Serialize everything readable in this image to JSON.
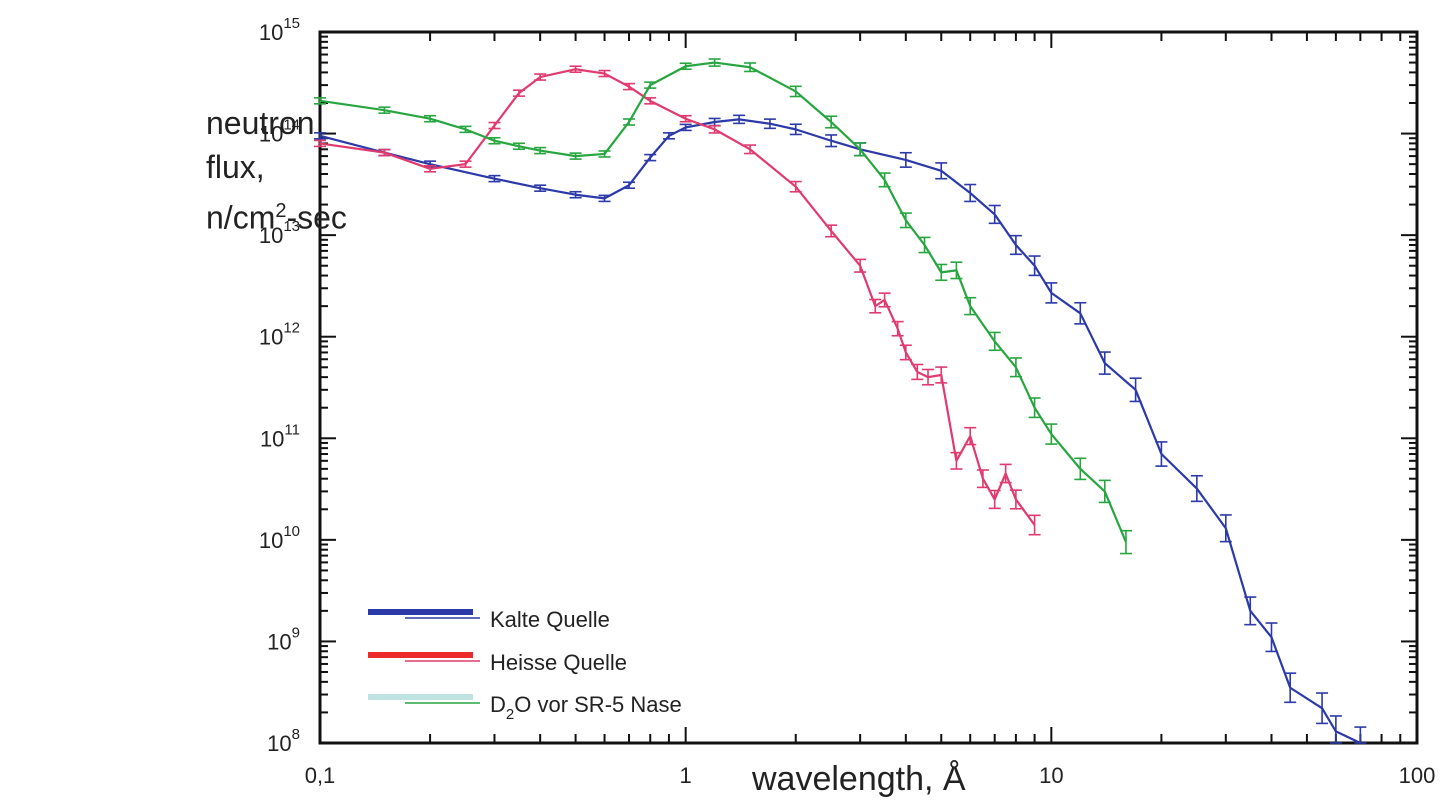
{
  "chart_data": {
    "type": "line",
    "title": "",
    "ylabel_lines": [
      "neutron",
      "flux,",
      "n/cm",
      "2",
      "-sec"
    ],
    "xlabel": "wavelength, Å",
    "xscale": "log",
    "yscale": "log",
    "xlim": [
      0.1,
      100
    ],
    "ylim": [
      100000000.0,
      1000000000000000.0
    ],
    "x_ticks": [
      {
        "value": 0.1,
        "label": "0,1"
      },
      {
        "value": 1,
        "label": "1"
      },
      {
        "value": 10,
        "label": "10"
      },
      {
        "value": 100,
        "label": "100"
      }
    ],
    "y_ticks": [
      {
        "value": 100000000.0,
        "base": "10",
        "exp": "8"
      },
      {
        "value": 1000000000.0,
        "base": "10",
        "exp": "9"
      },
      {
        "value": 10000000000.0,
        "base": "10",
        "exp": "10"
      },
      {
        "value": 100000000000.0,
        "base": "10",
        "exp": "11"
      },
      {
        "value": 1000000000000.0,
        "base": "10",
        "exp": "12"
      },
      {
        "value": 10000000000000.0,
        "base": "10",
        "exp": "13"
      },
      {
        "value": 100000000000000.0,
        "base": "10",
        "exp": "14"
      },
      {
        "value": 1000000000000000.0,
        "base": "10",
        "exp": "15"
      }
    ],
    "legend_position": "bottom-left",
    "series": [
      {
        "name": "Kalte Quelle",
        "color": "#2b3aa8",
        "x": [
          0.1,
          0.15,
          0.2,
          0.3,
          0.4,
          0.5,
          0.6,
          0.7,
          0.8,
          0.9,
          1.0,
          1.2,
          1.4,
          1.7,
          2.0,
          2.5,
          3.0,
          4.0,
          5.0,
          6.0,
          7.0,
          8.0,
          9.0,
          10.0,
          12.0,
          14.0,
          17.0,
          20.0,
          25.0,
          30.0,
          35.0,
          40.0,
          45.0,
          55.0,
          60.0,
          70.0
        ],
        "y": [
          95000000000000.0,
          65000000000000.0,
          50000000000000.0,
          36000000000000.0,
          29000000000000.0,
          25000000000000.0,
          23000000000000.0,
          31000000000000.0,
          58000000000000.0,
          95000000000000.0,
          115000000000000.0,
          130000000000000.0,
          138000000000000.0,
          125000000000000.0,
          110000000000000.0,
          85000000000000.0,
          70000000000000.0,
          55000000000000.0,
          43000000000000.0,
          26000000000000.0,
          16000000000000.0,
          8000000000000.0,
          5000000000000.0,
          2700000000000.0,
          1700000000000.0,
          550000000000.0,
          300000000000.0,
          70000000000.0,
          32000000000.0,
          13000000000.0,
          2000000000.0,
          1100000000.0,
          350000000.0,
          220000000.0,
          130000000.0,
          100000000.0
        ]
      },
      {
        "name": "Heisse Quelle",
        "color": "#e03a6e",
        "x": [
          0.1,
          0.15,
          0.2,
          0.25,
          0.3,
          0.35,
          0.4,
          0.5,
          0.6,
          0.7,
          0.8,
          1.0,
          1.2,
          1.5,
          2.0,
          2.5,
          3.0,
          3.3,
          3.5,
          3.8,
          4.0,
          4.3,
          4.6,
          5.0,
          5.5,
          6.0,
          6.5,
          7.0,
          7.5,
          8.0,
          9.0
        ],
        "y": [
          80000000000000.0,
          65000000000000.0,
          45000000000000.0,
          50000000000000.0,
          120000000000000.0,
          250000000000000.0,
          360000000000000.0,
          430000000000000.0,
          390000000000000.0,
          290000000000000.0,
          210000000000000.0,
          140000000000000.0,
          110000000000000.0,
          70000000000000.0,
          30000000000000.0,
          11000000000000.0,
          5000000000000.0,
          2000000000000.0,
          2300000000000.0,
          1200000000000.0,
          700000000000.0,
          450000000000.0,
          400000000000.0,
          420000000000.0,
          60000000000.0,
          105000000000.0,
          40000000000.0,
          25000000000.0,
          45000000000.0,
          25000000000.0,
          14000000000.0
        ]
      },
      {
        "name": "D2O vor SR-5 Nase",
        "color": "#27a640",
        "x": [
          0.1,
          0.15,
          0.2,
          0.25,
          0.3,
          0.35,
          0.4,
          0.5,
          0.6,
          0.7,
          0.8,
          1.0,
          1.2,
          1.5,
          2.0,
          2.5,
          3.0,
          3.5,
          4.0,
          4.5,
          5.0,
          5.5,
          6.0,
          7.0,
          8.0,
          9.0,
          10.0,
          12.0,
          14.0,
          16.0
        ],
        "y": [
          210000000000000.0,
          170000000000000.0,
          140000000000000.0,
          110000000000000.0,
          85000000000000.0,
          75000000000000.0,
          68000000000000.0,
          60000000000000.0,
          63000000000000.0,
          130000000000000.0,
          300000000000000.0,
          460000000000000.0,
          500000000000000.0,
          450000000000000.0,
          260000000000000.0,
          130000000000000.0,
          70000000000000.0,
          35000000000000.0,
          14000000000000.0,
          8000000000000.0,
          4300000000000.0,
          4500000000000.0,
          2000000000000.0,
          900000000000.0,
          500000000000.0,
          200000000000.0,
          110000000000.0,
          50000000000.0,
          30000000000.0,
          9500000000.0
        ]
      }
    ]
  },
  "legend": {
    "items": [
      {
        "text": "Kalte Quelle",
        "color": "#2b3aa8",
        "thin_color": "#2b3aa8"
      },
      {
        "text": "Heisse Quelle",
        "color": "#ee2b2b",
        "thin_color": "#e03a6e"
      },
      {
        "text_main": "D",
        "text_sub": "2",
        "text_rest": "O vor SR-5 Nase",
        "color": "#bfe3e3",
        "thin_color": "#27a640"
      }
    ]
  }
}
